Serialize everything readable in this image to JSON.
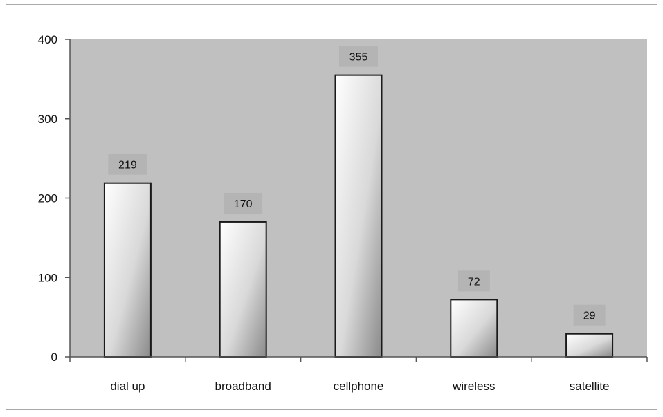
{
  "chart_data": {
    "type": "bar",
    "categories": [
      "dial up",
      "broadband",
      "cellphone",
      "wireless",
      "satellite"
    ],
    "values": [
      219,
      170,
      355,
      72,
      29
    ],
    "data_labels": [
      "219",
      "170",
      "355",
      "72",
      "29"
    ],
    "title": "",
    "xlabel": "",
    "ylabel": "",
    "ylim": [
      0,
      400
    ],
    "yticks": [
      0,
      100,
      200,
      300,
      400
    ],
    "ytick_labels": [
      "0",
      "100",
      "200",
      "300",
      "400"
    ],
    "grid": false,
    "legend": "none",
    "colors": {
      "plot_background": "#c0c0c0",
      "bar_fill_light": "#ffffff",
      "bar_fill_dark": "#8a8a8a",
      "bar_stroke": "#1a1a1a",
      "label_box": "#b4b4b4"
    }
  }
}
